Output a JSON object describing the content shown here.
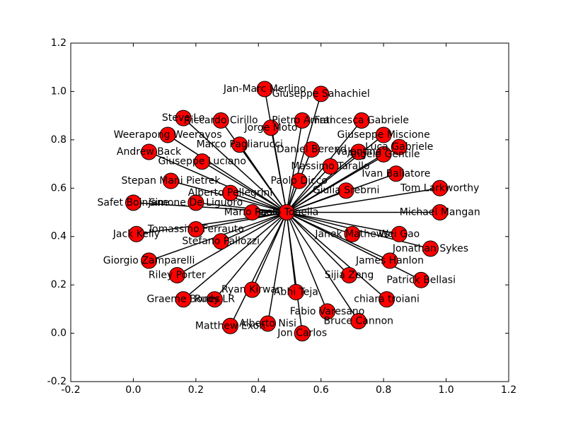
{
  "chart_data": {
    "type": "network",
    "xlim": [
      -0.2,
      1.2
    ],
    "ylim": [
      -0.2,
      1.2
    ],
    "xticks": [
      -0.2,
      0.0,
      0.2,
      0.4,
      0.6,
      0.8,
      1.0,
      1.2
    ],
    "yticks": [
      -0.2,
      0.0,
      0.2,
      0.4,
      0.6,
      0.8,
      1.0,
      1.2
    ],
    "node_color": "#ff0000",
    "edge_color": "#000000",
    "nodes": [
      {
        "label": "Jan-Marc Merlino",
        "x": 0.42,
        "y": 1.01
      },
      {
        "label": "Giuseppe Sahachiel",
        "x": 0.6,
        "y": 0.99
      },
      {
        "label": "Jorge Moto",
        "x": 0.44,
        "y": 0.85
      },
      {
        "label": "Pietro Amati",
        "x": 0.54,
        "y": 0.88
      },
      {
        "label": "Francesca Gabriele",
        "x": 0.73,
        "y": 0.88
      },
      {
        "label": "Steve Lo",
        "x": 0.16,
        "y": 0.89
      },
      {
        "label": "Riccardo Cirillo",
        "x": 0.28,
        "y": 0.88
      },
      {
        "label": "Weerapong Weerayos",
        "x": 0.11,
        "y": 0.82
      },
      {
        "label": "Marco Pagliarucci",
        "x": 0.34,
        "y": 0.78
      },
      {
        "label": "Andrew Back",
        "x": 0.05,
        "y": 0.75
      },
      {
        "label": "Giuseppe Luciano",
        "x": 0.22,
        "y": 0.71
      },
      {
        "label": "Daniel Berend",
        "x": 0.57,
        "y": 0.76
      },
      {
        "label": "Giuseppe Miscione",
        "x": 0.8,
        "y": 0.82
      },
      {
        "label": "Luca Gabriele",
        "x": 0.85,
        "y": 0.77
      },
      {
        "label": "Angelo Gentile",
        "x": 0.8,
        "y": 0.74
      },
      {
        "label": "Valentina",
        "x": 0.72,
        "y": 0.75
      },
      {
        "label": "Massimo Tarallo",
        "x": 0.63,
        "y": 0.69
      },
      {
        "label": "Ivan Ballatore",
        "x": 0.84,
        "y": 0.66
      },
      {
        "label": "Tom Larkworthy",
        "x": 0.98,
        "y": 0.6
      },
      {
        "label": "Stepan Mani Pietrek",
        "x": 0.12,
        "y": 0.63
      },
      {
        "label": "Paolo Dicco",
        "x": 0.53,
        "y": 0.63
      },
      {
        "label": "Giulia Srebrni",
        "x": 0.68,
        "y": 0.59
      },
      {
        "label": "Alberto Pellegrini",
        "x": 0.31,
        "y": 0.58
      },
      {
        "label": "Safet Bojnjane",
        "x": 0.0,
        "y": 0.54
      },
      {
        "label": "Simone De Liguoro",
        "x": 0.2,
        "y": 0.54
      },
      {
        "label": "Michael Mangan",
        "x": 0.98,
        "y": 0.5
      },
      {
        "label": "Mario Rossi",
        "x": 0.38,
        "y": 0.5
      },
      {
        "label": "Paolo Tonella",
        "x": 0.49,
        "y": 0.5
      },
      {
        "label": "Tomassino Ferrauto",
        "x": 0.2,
        "y": 0.43
      },
      {
        "label": "Jack Kelly",
        "x": 0.01,
        "y": 0.41
      },
      {
        "label": "Janek Mathews",
        "x": 0.7,
        "y": 0.41
      },
      {
        "label": "Wei Gao",
        "x": 0.85,
        "y": 0.41
      },
      {
        "label": "Stefano Pallozzi",
        "x": 0.28,
        "y": 0.38
      },
      {
        "label": "Jonathan Sykes",
        "x": 0.95,
        "y": 0.35
      },
      {
        "label": "James Hanlon",
        "x": 0.82,
        "y": 0.3
      },
      {
        "label": "Giorgio Zamparelli",
        "x": 0.05,
        "y": 0.3
      },
      {
        "label": "Riley Porter",
        "x": 0.14,
        "y": 0.24
      },
      {
        "label": "Sijia Zeng",
        "x": 0.69,
        "y": 0.24
      },
      {
        "label": "Patrick Bellasi",
        "x": 0.92,
        "y": 0.22
      },
      {
        "label": "Ryan Kirwan",
        "x": 0.38,
        "y": 0.18
      },
      {
        "label": "Abhi Teja",
        "x": 0.52,
        "y": 0.17
      },
      {
        "label": "Graeme Bones",
        "x": 0.16,
        "y": 0.14
      },
      {
        "label": "Rudy LR",
        "x": 0.26,
        "y": 0.14
      },
      {
        "label": "chiara troiani",
        "x": 0.81,
        "y": 0.14
      },
      {
        "label": "Fabio Varesano",
        "x": 0.62,
        "y": 0.09
      },
      {
        "label": "Bruce Cannon",
        "x": 0.72,
        "y": 0.05
      },
      {
        "label": "Matthew Exon",
        "x": 0.31,
        "y": 0.03
      },
      {
        "label": "Alberto Nisi",
        "x": 0.43,
        "y": 0.04
      },
      {
        "label": "Jon Carlos",
        "x": 0.54,
        "y": 0.0
      }
    ],
    "edges": [
      [
        27,
        0
      ],
      [
        27,
        1
      ],
      [
        27,
        2
      ],
      [
        27,
        3
      ],
      [
        27,
        4
      ],
      [
        27,
        5
      ],
      [
        27,
        6
      ],
      [
        27,
        7
      ],
      [
        27,
        8
      ],
      [
        27,
        9
      ],
      [
        27,
        10
      ],
      [
        27,
        11
      ],
      [
        27,
        12
      ],
      [
        27,
        13
      ],
      [
        27,
        14
      ],
      [
        27,
        15
      ],
      [
        27,
        16
      ],
      [
        27,
        17
      ],
      [
        27,
        18
      ],
      [
        27,
        19
      ],
      [
        27,
        20
      ],
      [
        27,
        21
      ],
      [
        27,
        22
      ],
      [
        27,
        23
      ],
      [
        27,
        24
      ],
      [
        27,
        25
      ],
      [
        27,
        26
      ],
      [
        27,
        28
      ],
      [
        27,
        29
      ],
      [
        27,
        30
      ],
      [
        27,
        31
      ],
      [
        27,
        32
      ],
      [
        27,
        33
      ],
      [
        27,
        34
      ],
      [
        27,
        35
      ],
      [
        27,
        36
      ],
      [
        27,
        37
      ],
      [
        27,
        38
      ],
      [
        27,
        39
      ],
      [
        27,
        40
      ],
      [
        27,
        41
      ],
      [
        27,
        42
      ],
      [
        27,
        43
      ],
      [
        27,
        44
      ],
      [
        27,
        45
      ],
      [
        27,
        46
      ],
      [
        27,
        47
      ],
      [
        27,
        48
      ]
    ]
  }
}
